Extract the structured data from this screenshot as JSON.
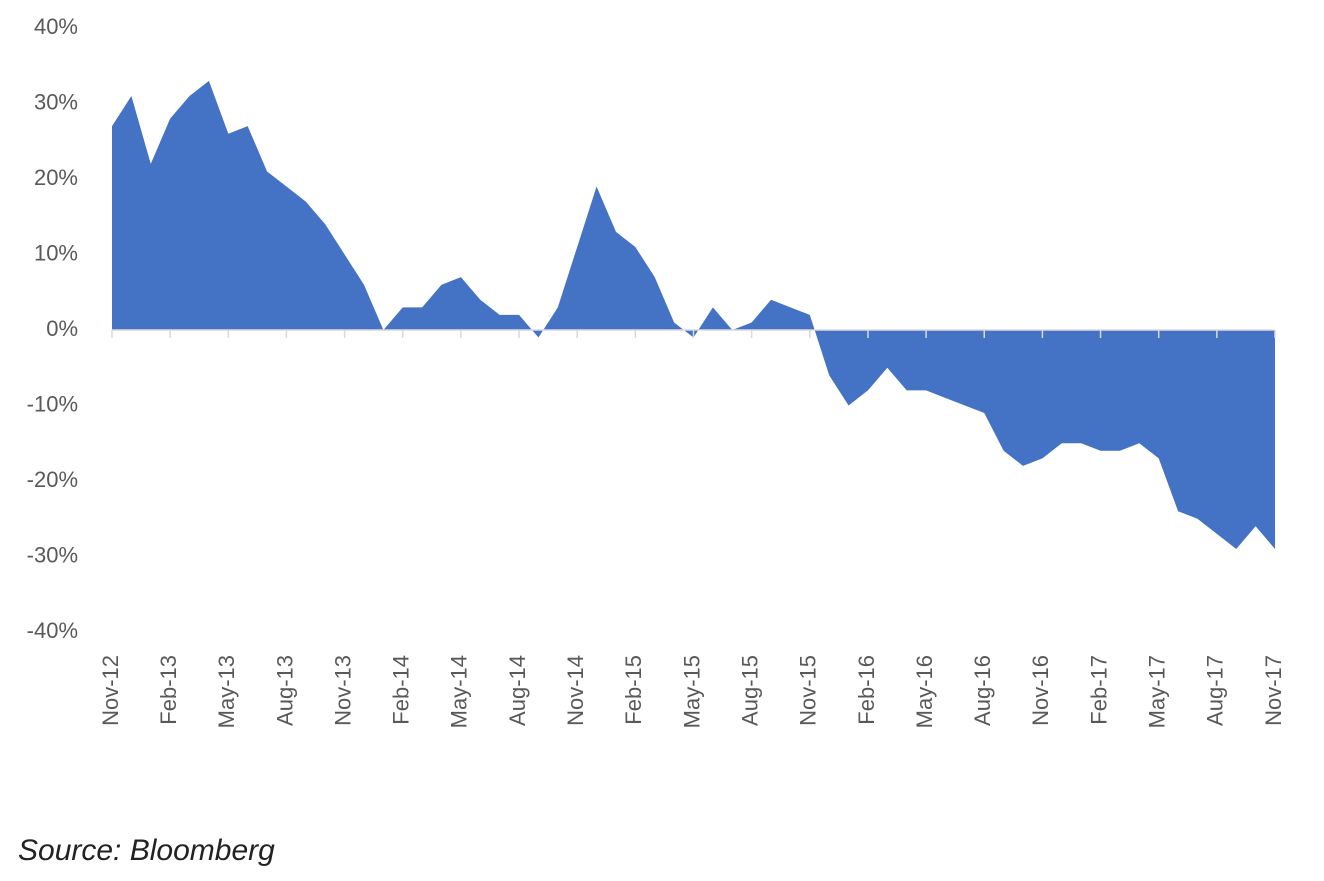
{
  "chart_data": {
    "type": "area",
    "color": "#4472c4",
    "note": "Source: Bloomberg",
    "categories": [
      "Nov-12",
      null,
      null,
      "Feb-13",
      null,
      null,
      "May-13",
      null,
      null,
      "Aug-13",
      null,
      null,
      "Nov-13",
      null,
      null,
      "Feb-14",
      null,
      null,
      "May-14",
      null,
      null,
      "Aug-14",
      null,
      null,
      "Nov-14",
      null,
      null,
      "Feb-15",
      null,
      null,
      "May-15",
      null,
      null,
      "Aug-15",
      null,
      null,
      "Nov-15",
      null,
      null,
      "Feb-16",
      null,
      null,
      "May-16",
      null,
      null,
      "Aug-16",
      null,
      null,
      "Nov-16",
      null,
      null,
      "Feb-17",
      null,
      null,
      "May-17",
      null,
      null,
      "Aug-17",
      null,
      null,
      "Nov-17"
    ],
    "values": [
      27,
      31,
      22,
      28,
      31,
      33,
      26,
      27,
      21,
      19,
      17,
      14,
      10,
      6,
      0,
      3,
      3,
      6,
      7,
      4,
      2,
      2,
      -1,
      3,
      11,
      19,
      13,
      11,
      7,
      1,
      -1,
      3,
      0,
      1,
      4,
      3,
      2,
      -6,
      -10,
      -8,
      -5,
      -8,
      -8,
      -9,
      -10,
      -11,
      -16,
      -18,
      -17,
      -15,
      -15,
      -16,
      -16,
      -15,
      -17,
      -24,
      -25,
      -27,
      -29,
      -26,
      -29
    ],
    "ylim": [
      -40,
      40
    ],
    "yticks": [
      {
        "value": -40,
        "label": "-40%"
      },
      {
        "value": -30,
        "label": "-30%"
      },
      {
        "value": -20,
        "label": "-20%"
      },
      {
        "value": -10,
        "label": "-10%"
      },
      {
        "value": 0,
        "label": "0%"
      },
      {
        "value": 10,
        "label": "10%"
      },
      {
        "value": 20,
        "label": "20%"
      },
      {
        "value": 30,
        "label": "30%"
      },
      {
        "value": 40,
        "label": "40%"
      }
    ]
  }
}
